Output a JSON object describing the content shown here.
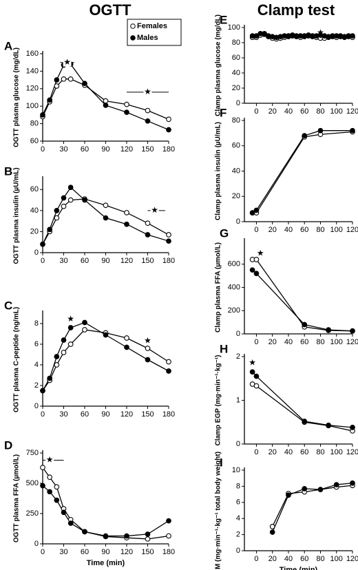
{
  "titles": [
    "OGTT",
    "Clamp test"
  ],
  "chart_data": [
    {
      "type": "line",
      "panel_label": "A",
      "ylabel": "OGTT plasma glucose (mg/dL)",
      "x": [
        0,
        10,
        20,
        30,
        40,
        60,
        90,
        120,
        150,
        180
      ],
      "xlim": [
        0,
        180
      ],
      "xticks": [
        0,
        30,
        60,
        90,
        120,
        150,
        180
      ],
      "ylim": [
        60,
        160
      ],
      "yticks": [
        60,
        80,
        100,
        120,
        140,
        160
      ],
      "legend": "upper right",
      "annotations": [
        "★",
        "★"
      ],
      "series": [
        {
          "name": "Females",
          "marker": "open",
          "color": "#000000",
          "values": [
            88,
            105,
            123,
            131,
            131,
            124,
            106,
            102,
            95,
            85
          ]
        },
        {
          "name": "Males",
          "marker": "filled",
          "color": "#000000",
          "values": [
            90,
            107,
            130,
            147,
            148,
            126,
            101,
            93,
            83,
            73
          ]
        }
      ]
    },
    {
      "type": "line",
      "panel_label": "B",
      "ylabel": "OGTT plasma insulin (µU/mL)",
      "x": [
        0,
        10,
        20,
        30,
        40,
        60,
        90,
        120,
        150,
        180
      ],
      "xlim": [
        0,
        180
      ],
      "xticks": [
        0,
        30,
        60,
        90,
        120,
        150,
        180
      ],
      "ylim": [
        0,
        70
      ],
      "yticks": [
        0,
        20,
        40,
        60
      ],
      "annotations": [
        "★"
      ],
      "series": [
        {
          "name": "Females",
          "marker": "open",
          "color": "#000000",
          "values": [
            8,
            20,
            33,
            44,
            50,
            51,
            45,
            38,
            28,
            17
          ]
        },
        {
          "name": "Males",
          "marker": "filled",
          "color": "#000000",
          "values": [
            8,
            22,
            40,
            52,
            62,
            50,
            33,
            27,
            17,
            11
          ]
        }
      ]
    },
    {
      "type": "line",
      "panel_label": "C",
      "ylabel": "OGTT plasma C-peptide (ng/mL)",
      "x": [
        0,
        10,
        20,
        30,
        40,
        60,
        90,
        120,
        150,
        180
      ],
      "xlim": [
        0,
        180
      ],
      "xticks": [
        0,
        30,
        60,
        90,
        120,
        150,
        180
      ],
      "ylim": [
        0,
        9
      ],
      "yticks": [
        0,
        2,
        4,
        6,
        8
      ],
      "annotations": [
        "★",
        "★"
      ],
      "series": [
        {
          "name": "Females",
          "marker": "open",
          "color": "#000000",
          "values": [
            1.5,
            2.5,
            4.0,
            5.2,
            6.0,
            7.4,
            7.1,
            6.6,
            5.6,
            4.3
          ]
        },
        {
          "name": "Males",
          "marker": "filled",
          "color": "#000000",
          "values": [
            1.5,
            2.7,
            4.8,
            6.4,
            7.6,
            8.1,
            6.9,
            5.7,
            4.5,
            3.4
          ]
        }
      ]
    },
    {
      "type": "line",
      "panel_label": "D",
      "ylabel": "OGTT plasma FFA (µmol/L)",
      "xlabel": "Time (min)",
      "x": [
        0,
        10,
        20,
        30,
        40,
        60,
        90,
        120,
        150,
        180
      ],
      "xlim": [
        0,
        180
      ],
      "xticks": [
        0,
        30,
        60,
        90,
        120,
        150,
        180
      ],
      "ylim": [
        0,
        750
      ],
      "yticks": [
        0,
        250,
        500,
        750
      ],
      "annotations": [
        "★"
      ],
      "series": [
        {
          "name": "Females",
          "marker": "open",
          "color": "#000000",
          "values": [
            630,
            550,
            470,
            290,
            200,
            100,
            60,
            50,
            40,
            65
          ]
        },
        {
          "name": "Males",
          "marker": "filled",
          "color": "#000000",
          "values": [
            480,
            430,
            360,
            260,
            170,
            100,
            65,
            65,
            80,
            190
          ]
        }
      ]
    },
    {
      "type": "line",
      "panel_label": "E",
      "ylabel": "Clamp plasma glucose (mg/dL)",
      "x": [
        -5,
        0,
        5,
        10,
        15,
        20,
        25,
        30,
        35,
        40,
        45,
        50,
        55,
        60,
        65,
        70,
        75,
        80,
        85,
        90,
        95,
        100,
        105,
        110,
        115,
        120
      ],
      "xlim": [
        -15,
        120
      ],
      "xticks": [
        0,
        20,
        40,
        60,
        80,
        100,
        120
      ],
      "ylim": [
        0,
        100
      ],
      "yticks": [
        0,
        20,
        40,
        60,
        80,
        100
      ],
      "annotations": [
        "★"
      ],
      "series": [
        {
          "name": "Females",
          "marker": "open",
          "color": "#000000",
          "values": [
            87,
            87,
            90,
            91,
            88,
            86,
            85,
            86,
            87,
            88,
            89,
            88,
            87,
            88,
            89,
            88,
            87,
            86,
            86,
            87,
            88,
            87,
            88,
            87,
            88,
            87
          ]
        },
        {
          "name": "Males",
          "marker": "filled",
          "color": "#000000",
          "values": [
            89,
            89,
            92,
            92,
            89,
            88,
            87,
            88,
            89,
            89,
            90,
            89,
            89,
            89,
            90,
            89,
            89,
            90,
            89,
            88,
            89,
            89,
            89,
            88,
            89,
            89
          ]
        }
      ]
    },
    {
      "type": "line",
      "panel_label": "F",
      "ylabel": "Clamp plasma insulin (µU/mL)",
      "x": [
        -5,
        0,
        60,
        80,
        120
      ],
      "xlim": [
        -15,
        120
      ],
      "xticks": [
        0,
        20,
        40,
        60,
        80,
        100,
        120
      ],
      "ylim": [
        0,
        80
      ],
      "yticks": [
        0,
        20,
        40,
        60,
        80
      ],
      "annotations": [],
      "series": [
        {
          "name": "Females",
          "marker": "open",
          "color": "#000000",
          "values": [
            7,
            7,
            67,
            69,
            71
          ]
        },
        {
          "name": "Males",
          "marker": "filled",
          "color": "#000000",
          "values": [
            7,
            9,
            68,
            72,
            72
          ]
        }
      ]
    },
    {
      "type": "line",
      "panel_label": "G",
      "ylabel": "Clamp plasma FFA (µmol/L)",
      "x": [
        -5,
        0,
        60,
        90,
        120
      ],
      "xlim": [
        -15,
        120
      ],
      "xticks": [
        0,
        20,
        40,
        60,
        80,
        100,
        120
      ],
      "ylim": [
        0,
        800
      ],
      "yticks": [
        0,
        200,
        400,
        600
      ],
      "annotations": [
        "★"
      ],
      "series": [
        {
          "name": "Females",
          "marker": "open",
          "color": "#000000",
          "values": [
            640,
            640,
            60,
            30,
            25
          ]
        },
        {
          "name": "Males",
          "marker": "filled",
          "color": "#000000",
          "values": [
            550,
            520,
            80,
            35,
            25
          ]
        }
      ]
    },
    {
      "type": "line",
      "panel_label": "H",
      "ylabel": "Clamp EGP (mg·min⁻¹·kg⁻¹)",
      "x": [
        -5,
        0,
        60,
        90,
        120
      ],
      "xlim": [
        -15,
        120
      ],
      "xticks": [
        0,
        20,
        40,
        60,
        80,
        100,
        120
      ],
      "ylim": [
        0,
        2
      ],
      "yticks": [
        0,
        1,
        2
      ],
      "annotations": [
        "★"
      ],
      "series": [
        {
          "name": "Females",
          "marker": "open",
          "color": "#000000",
          "values": [
            1.37,
            1.33,
            0.5,
            0.42,
            0.3
          ]
        },
        {
          "name": "Males",
          "marker": "filled",
          "color": "#000000",
          "values": [
            1.65,
            1.55,
            0.52,
            0.43,
            0.38
          ]
        }
      ]
    },
    {
      "type": "line",
      "panel_label": "I",
      "ylabel": "M (mg·min⁻¹·kg⁻¹ total body weight)",
      "xlabel": "Time (min)",
      "x": [
        20,
        40,
        60,
        80,
        100,
        120
      ],
      "xlim": [
        -15,
        120
      ],
      "xticks": [
        0,
        20,
        40,
        60,
        80,
        100,
        120
      ],
      "ylim": [
        0,
        10
      ],
      "yticks": [
        0,
        2,
        4,
        6,
        8,
        10
      ],
      "annotations": [],
      "series": [
        {
          "name": "Females",
          "marker": "open",
          "color": "#000000",
          "values": [
            3.0,
            7.1,
            7.3,
            7.6,
            7.9,
            8.1
          ]
        },
        {
          "name": "Males",
          "marker": "filled",
          "color": "#000000",
          "values": [
            2.3,
            6.9,
            7.7,
            7.6,
            8.2,
            8.4
          ]
        }
      ]
    }
  ]
}
